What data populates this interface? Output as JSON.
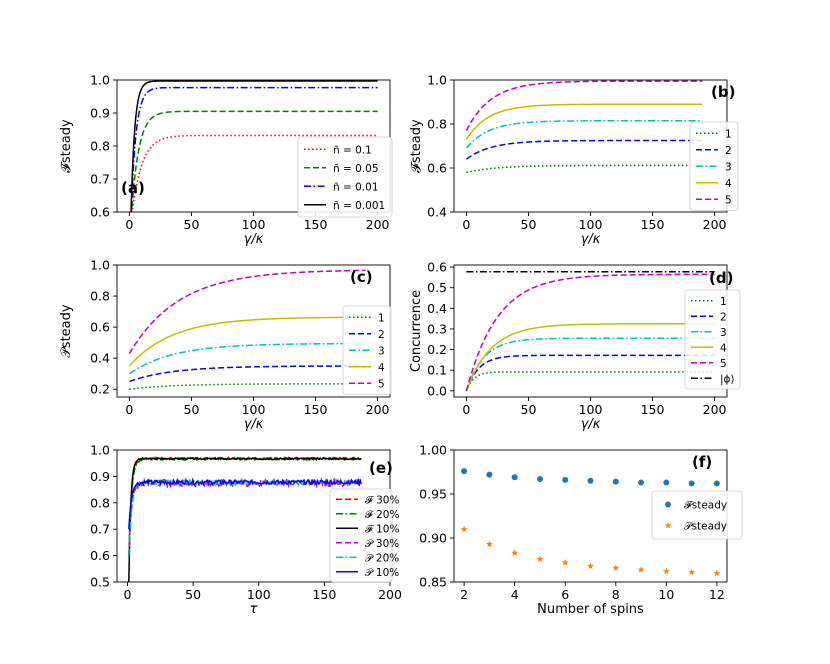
{
  "figure": {
    "colors": {
      "red": "#ff0000",
      "green": "#007f00",
      "blue": "#0000ff",
      "black": "#000000",
      "olive": "#bfbf00",
      "cyan": "#00bfbf",
      "magenta": "#bf00bf",
      "orange": "#ff7f0e",
      "mplblue": "#1f77b4"
    }
  },
  "chart_data": [
    {
      "id": "a",
      "type": "line",
      "label": "(a)",
      "xlabel": "γ/κ",
      "ylabel": "𝓕steady",
      "xlim": [
        -10,
        210
      ],
      "ylim": [
        0.6,
        1.0
      ],
      "xticks": [
        0,
        50,
        100,
        150,
        200
      ],
      "xtick_labels": [
        "0",
        "50",
        "100",
        "150",
        "200"
      ],
      "yticks": [
        0.6,
        0.7,
        0.8,
        0.9,
        1.0
      ],
      "ytick_labels": [
        "0.6",
        "0.7",
        "0.8",
        "0.9",
        "1.0"
      ],
      "legend": {
        "position": "lower-right"
      },
      "series": [
        {
          "name": "n̄ = 0.1",
          "color": "red",
          "dash": "dotted",
          "x0": 1,
          "x1": 200,
          "y0": 0.56,
          "yinf": 0.832,
          "k": 8
        },
        {
          "name": "n̄ = 0.05",
          "color": "green",
          "dash": "dashed",
          "x0": 1,
          "x1": 200,
          "y0": 0.56,
          "yinf": 0.905,
          "k": 6
        },
        {
          "name": "n̄ = 0.01",
          "color": "blue",
          "dash": "dashdot",
          "x0": 1,
          "x1": 200,
          "y0": 0.56,
          "yinf": 0.977,
          "k": 4
        },
        {
          "name": "n̄ = 0.001",
          "color": "black",
          "dash": "solid",
          "x0": 1,
          "x1": 200,
          "y0": 0.56,
          "yinf": 0.997,
          "k": 3
        }
      ]
    },
    {
      "id": "b",
      "type": "line",
      "label": "(b)",
      "xlabel": "γ/κ",
      "ylabel": "𝓕steady",
      "xlim": [
        -10,
        210
      ],
      "ylim": [
        0.4,
        1.0
      ],
      "xticks": [
        0,
        50,
        100,
        150,
        200
      ],
      "xtick_labels": [
        "0",
        "50",
        "100",
        "150",
        "200"
      ],
      "yticks": [
        0.4,
        0.6,
        0.8,
        1.0
      ],
      "ytick_labels": [
        "0.4",
        "0.6",
        "0.8",
        "1.0"
      ],
      "legend": {
        "position": "right"
      },
      "series": [
        {
          "name": "1",
          "color": "green",
          "dash": "dotted",
          "x0": 0,
          "x1": 190,
          "y0": 0.58,
          "yinf": 0.612,
          "k": 25
        },
        {
          "name": "2",
          "color": "blue",
          "dash": "dashed",
          "x0": 0,
          "x1": 190,
          "y0": 0.64,
          "yinf": 0.725,
          "k": 20
        },
        {
          "name": "3",
          "color": "cyan",
          "dash": "dashdot",
          "x0": 0,
          "x1": 190,
          "y0": 0.69,
          "yinf": 0.815,
          "k": 18
        },
        {
          "name": "4",
          "color": "olive",
          "dash": "solid",
          "x0": 0,
          "x1": 190,
          "y0": 0.73,
          "yinf": 0.89,
          "k": 18
        },
        {
          "name": "5",
          "color": "magenta",
          "dash": "dashed",
          "x0": 0,
          "x1": 190,
          "y0": 0.77,
          "yinf": 0.995,
          "k": 20
        }
      ]
    },
    {
      "id": "c",
      "type": "line",
      "label": "(c)",
      "xlabel": "γ/κ",
      "ylabel": "𝒫steady",
      "xlim": [
        -10,
        210
      ],
      "ylim": [
        0.15,
        1.0
      ],
      "xticks": [
        0,
        50,
        100,
        150,
        200
      ],
      "xtick_labels": [
        "0",
        "50",
        "100",
        "150",
        "200"
      ],
      "yticks": [
        0.2,
        0.4,
        0.6,
        0.8,
        1.0
      ],
      "ytick_labels": [
        "0.2",
        "0.4",
        "0.6",
        "0.8",
        "1.0"
      ],
      "legend": {
        "position": "right"
      },
      "series": [
        {
          "name": "1",
          "color": "green",
          "dash": "dotted",
          "x0": 0,
          "x1": 190,
          "y0": 0.2,
          "yinf": 0.235,
          "k": 35
        },
        {
          "name": "2",
          "color": "blue",
          "dash": "dashed",
          "x0": 0,
          "x1": 190,
          "y0": 0.25,
          "yinf": 0.35,
          "k": 35
        },
        {
          "name": "3",
          "color": "cyan",
          "dash": "dashdot",
          "x0": 0,
          "x1": 190,
          "y0": 0.3,
          "yinf": 0.495,
          "k": 35
        },
        {
          "name": "4",
          "color": "olive",
          "dash": "solid",
          "x0": 0,
          "x1": 190,
          "y0": 0.35,
          "yinf": 0.665,
          "k": 35
        },
        {
          "name": "5",
          "color": "magenta",
          "dash": "dashed",
          "x0": 0,
          "x1": 190,
          "y0": 0.43,
          "yinf": 0.97,
          "k": 40
        }
      ]
    },
    {
      "id": "d",
      "type": "line",
      "label": "(d)",
      "xlabel": "γ/κ",
      "ylabel": "Concurrence",
      "xlim": [
        -10,
        210
      ],
      "ylim": [
        -0.03,
        0.61
      ],
      "xticks": [
        0,
        50,
        100,
        150,
        200
      ],
      "xtick_labels": [
        "0",
        "50",
        "100",
        "150",
        "200"
      ],
      "yticks": [
        0.0,
        0.1,
        0.2,
        0.3,
        0.4,
        0.5,
        0.6
      ],
      "ytick_labels": [
        "0.0",
        "0.1",
        "0.2",
        "0.3",
        "0.4",
        "0.5",
        "0.6"
      ],
      "legend": {
        "position": "right"
      },
      "series": [
        {
          "name": "1",
          "color": "green",
          "dash": "dotted",
          "x0": 0,
          "x1": 200,
          "y0": 0.0,
          "yinf": 0.092,
          "k": 6
        },
        {
          "name": "2",
          "color": "blue",
          "dash": "dashed",
          "x0": 0,
          "x1": 200,
          "y0": 0.0,
          "yinf": 0.172,
          "k": 10
        },
        {
          "name": "3",
          "color": "cyan",
          "dash": "dashdot",
          "x0": 0,
          "x1": 200,
          "y0": 0.0,
          "yinf": 0.255,
          "k": 14
        },
        {
          "name": "4",
          "color": "olive",
          "dash": "solid",
          "x0": 0,
          "x1": 200,
          "y0": 0.0,
          "yinf": 0.325,
          "k": 20
        },
        {
          "name": "5",
          "color": "magenta",
          "dash": "dashed",
          "x0": 0,
          "x1": 200,
          "y0": 0.0,
          "yinf": 0.565,
          "k": 25
        },
        {
          "name": "|ϕ⟩",
          "color": "black",
          "dash": "dashdot",
          "x0": 0,
          "x1": 200,
          "y0": 0.577,
          "yinf": 0.577,
          "k": 1
        }
      ]
    },
    {
      "id": "e",
      "type": "line",
      "label": "(e)",
      "xlabel": "τ",
      "ylabel": "",
      "xlim": [
        -8,
        200
      ],
      "ylim": [
        0.5,
        1.0
      ],
      "xticks": [
        0,
        50,
        100,
        150,
        200
      ],
      "xtick_labels": [
        "0",
        "50",
        "100",
        "150",
        "200"
      ],
      "yticks": [
        0.5,
        0.6,
        0.7,
        0.8,
        0.9,
        1.0
      ],
      "ytick_labels": [
        "0.5",
        "0.6",
        "0.7",
        "0.8",
        "0.9",
        "1.0"
      ],
      "legend": {
        "position": "right"
      },
      "series": [
        {
          "name": "𝓕 30%",
          "color": "red",
          "dash": "dashed",
          "x0": 1,
          "x1": 178,
          "y0": 0.6,
          "yinf": 0.968,
          "k": 2,
          "noise": 0.004,
          "seed": 1
        },
        {
          "name": "𝓕 20%",
          "color": "green",
          "dash": "dashdot",
          "x0": 1,
          "x1": 178,
          "y0": 0.6,
          "yinf": 0.966,
          "k": 2,
          "noise": 0.004,
          "seed": 2
        },
        {
          "name": "𝓕 10%",
          "color": "black",
          "dash": "solid",
          "x0": 1,
          "x1": 178,
          "y0": 0.5,
          "yinf": 0.967,
          "k": 1.5,
          "noise": 0.003,
          "seed": 3
        },
        {
          "name": "𝒫 30%",
          "color": "magenta",
          "dash": "dashed",
          "x0": 1,
          "x1": 178,
          "y0": 0.6,
          "yinf": 0.875,
          "k": 2,
          "noise": 0.014,
          "seed": 4
        },
        {
          "name": "𝒫 20%",
          "color": "cyan",
          "dash": "dashdot",
          "x0": 1,
          "x1": 178,
          "y0": 0.6,
          "yinf": 0.877,
          "k": 2,
          "noise": 0.01,
          "seed": 5
        },
        {
          "name": "𝒫 10%",
          "color": "blue",
          "dash": "solid",
          "x0": 1,
          "x1": 178,
          "y0": 0.7,
          "yinf": 0.878,
          "k": 2,
          "noise": 0.008,
          "seed": 6
        }
      ]
    },
    {
      "id": "f",
      "type": "scatter",
      "label": "(f)",
      "xlabel": "Number of spins",
      "ylabel": "",
      "xlim": [
        1.6,
        12.4
      ],
      "ylim": [
        0.85,
        1.0
      ],
      "xticks": [
        2,
        4,
        6,
        8,
        10,
        12
      ],
      "xtick_labels": [
        "2",
        "4",
        "6",
        "8",
        "10",
        "12"
      ],
      "yticks": [
        0.85,
        0.9,
        0.95,
        1.0
      ],
      "ytick_labels": [
        "0.85",
        "0.90",
        "0.95",
        "1.00"
      ],
      "legend": {
        "position": "right"
      },
      "x": [
        2,
        3,
        4,
        5,
        6,
        7,
        8,
        9,
        10,
        11,
        12
      ],
      "series": [
        {
          "name": "𝓕steady",
          "color": "mplblue",
          "marker": "circle",
          "values": [
            0.976,
            0.972,
            0.969,
            0.967,
            0.966,
            0.965,
            0.964,
            0.963,
            0.963,
            0.962,
            0.962
          ]
        },
        {
          "name": "𝒫steady",
          "color": "orange",
          "marker": "star",
          "values": [
            0.91,
            0.893,
            0.883,
            0.876,
            0.872,
            0.868,
            0.866,
            0.864,
            0.862,
            0.861,
            0.86
          ]
        }
      ]
    }
  ]
}
